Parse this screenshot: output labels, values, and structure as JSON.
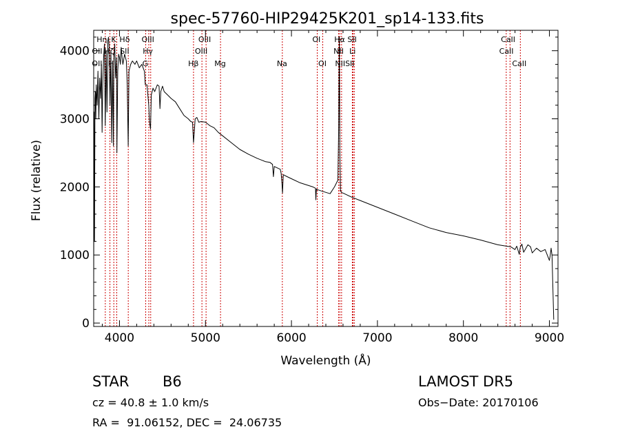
{
  "chart_data": {
    "type": "line",
    "title": "spec-57760-HIP29425K201_sp14-133.fits",
    "xlabel": "Wavelength (Å)",
    "ylabel": "Flux (relative)",
    "xlim": [
      3700,
      9100
    ],
    "ylim": [
      -50,
      4300
    ],
    "xticks": [
      4000,
      5000,
      6000,
      7000,
      8000,
      9000
    ],
    "yticks": [
      0,
      1000,
      2000,
      3000,
      4000
    ],
    "line_color": "#000000",
    "marker_color": "#cc0000",
    "series": [
      {
        "x": [
          3700,
          3705,
          3710,
          3715,
          3720,
          3725,
          3730,
          3740,
          3750,
          3760,
          3770,
          3780,
          3790,
          3798,
          3805,
          3815,
          3825,
          3835,
          3845,
          3855,
          3865,
          3872,
          3880,
          3890,
          3900,
          3910,
          3920,
          3930,
          3935,
          3945,
          3955,
          3965,
          3970,
          3980,
          3990,
          4000,
          4010,
          4020,
          4030,
          4040,
          4060,
          4080,
          4090,
          4101,
          4110,
          4130,
          4150,
          4180,
          4200,
          4230,
          4260,
          4290,
          4300,
          4320,
          4340,
          4350,
          4361,
          4370,
          4390,
          4410,
          4440,
          4460,
          4471,
          4480,
          4500,
          4520,
          4560,
          4600,
          4650,
          4700,
          4750,
          4800,
          4830,
          4850,
          4861,
          4870,
          4880,
          4900,
          4922,
          4950,
          5000,
          5050,
          5100,
          5150,
          5200,
          5300,
          5400,
          5500,
          5600,
          5700,
          5750,
          5780,
          5790,
          5800,
          5850,
          5870,
          5880,
          5890,
          5896,
          5905,
          5950,
          6000,
          6100,
          6200,
          6250,
          6280,
          6284,
          6290,
          6300,
          6400,
          6450,
          6500,
          6540,
          6550,
          6557,
          6563,
          6570,
          6580,
          6600,
          6700,
          6800,
          7000,
          7200,
          7400,
          7600,
          7800,
          8000,
          8200,
          8400,
          8500,
          8550,
          8600,
          8620,
          8650,
          8660,
          8680,
          8700,
          8750,
          8780,
          8800,
          8850,
          8900,
          8950,
          9000,
          9010,
          9020,
          9030,
          9050
        ],
        "y": [
          500,
          3100,
          1200,
          3300,
          3400,
          3000,
          3500,
          3200,
          3700,
          3000,
          3600,
          3300,
          3800,
          2800,
          3500,
          3900,
          4100,
          2900,
          4000,
          3100,
          4150,
          4200,
          4050,
          3200,
          4000,
          2650,
          3800,
          2600,
          3900,
          4100,
          3600,
          3900,
          2500,
          3700,
          3950,
          3900,
          3800,
          4050,
          3900,
          3800,
          3950,
          3850,
          3500,
          2600,
          3700,
          3800,
          3850,
          3800,
          3850,
          3750,
          3800,
          3700,
          3500,
          3500,
          3200,
          2950,
          2850,
          3350,
          3450,
          3400,
          3500,
          3480,
          3150,
          3400,
          3480,
          3400,
          3350,
          3300,
          3250,
          3150,
          3050,
          3000,
          2960,
          2950,
          2650,
          2800,
          3000,
          3020,
          2950,
          2960,
          2950,
          2900,
          2870,
          2800,
          2750,
          2650,
          2550,
          2480,
          2420,
          2370,
          2360,
          2330,
          2150,
          2300,
          2270,
          2260,
          2200,
          2050,
          1910,
          2180,
          2150,
          2120,
          2060,
          2020,
          2000,
          1980,
          1810,
          1970,
          1960,
          1920,
          1900,
          2000,
          2100,
          2900,
          4200,
          2500,
          1950,
          1920,
          1910,
          1850,
          1800,
          1700,
          1600,
          1500,
          1400,
          1330,
          1280,
          1220,
          1150,
          1130,
          1120,
          1080,
          1130,
          1010,
          1110,
          1160,
          1040,
          1150,
          1120,
          1030,
          1100,
          1050,
          1080,
          920,
          1000,
          1100,
          1000,
          50
        ]
      }
    ],
    "lines": [
      {
        "name": "Hη",
        "wavelength": 3835
      },
      {
        "name": "Hζ",
        "wavelength": 3889
      },
      {
        "name": "K",
        "wavelength": 3934
      },
      {
        "name": "H",
        "wavelength": 3968
      },
      {
        "name": "Hδ",
        "wavelength": 4102
      },
      {
        "name": "G",
        "wavelength": 4305
      },
      {
        "name": "Hγ",
        "wavelength": 4341
      },
      {
        "name": "OIII",
        "wavelength": 4363
      },
      {
        "name": "Hβ",
        "wavelength": 4861
      },
      {
        "name": "OIII",
        "wavelength": 4959
      },
      {
        "name": "OIII",
        "wavelength": 5007
      },
      {
        "name": "Mg",
        "wavelength": 5175
      },
      {
        "name": "Na",
        "wavelength": 5894
      },
      {
        "name": "OI",
        "wavelength": 6300
      },
      {
        "name": "OI",
        "wavelength": 6364
      },
      {
        "name": "NII",
        "wavelength": 6548
      },
      {
        "name": "Hα",
        "wavelength": 6563
      },
      {
        "name": "NII",
        "wavelength": 6583
      },
      {
        "name": "Li",
        "wavelength": 6708
      },
      {
        "name": "SII",
        "wavelength": 6716
      },
      {
        "name": "SII",
        "wavelength": 6731
      },
      {
        "name": "CaII",
        "wavelength": 8498
      },
      {
        "name": "CaII",
        "wavelength": 8542
      },
      {
        "name": "CaII",
        "wavelength": 8662
      }
    ],
    "line_labels": [
      {
        "text": "Hη",
        "wavelength": 3795,
        "row": 1
      },
      {
        "text": "K",
        "wavelength": 3932,
        "row": 1
      },
      {
        "text": "Hδ",
        "wavelength": 4060,
        "row": 1
      },
      {
        "text": "OIII",
        "wavelength": 4330,
        "row": 1
      },
      {
        "text": "OIII",
        "wavelength": 4990,
        "row": 1
      },
      {
        "text": "OI",
        "wavelength": 6290,
        "row": 1
      },
      {
        "text": "Hα",
        "wavelength": 6560,
        "row": 1
      },
      {
        "text": "SII",
        "wavelength": 6705,
        "row": 1
      },
      {
        "text": "CaII",
        "wavelength": 8520,
        "row": 1
      },
      {
        "text": "OII",
        "wavelength": 3740,
        "row": 2
      },
      {
        "text": "Hζ",
        "wavelength": 3880,
        "row": 2
      },
      {
        "text": "SII",
        "wavelength": 4060,
        "row": 2
      },
      {
        "text": "Hγ",
        "wavelength": 4330,
        "row": 2
      },
      {
        "text": "OIII",
        "wavelength": 4950,
        "row": 2
      },
      {
        "text": "NII",
        "wavelength": 6548,
        "row": 2
      },
      {
        "text": "Li",
        "wavelength": 6710,
        "row": 2
      },
      {
        "text": "CaII",
        "wavelength": 8500,
        "row": 2
      },
      {
        "text": "OII",
        "wavelength": 3740,
        "row": 3
      },
      {
        "text": "H",
        "wavelength": 3900,
        "row": 3
      },
      {
        "text": "G",
        "wavelength": 4300,
        "row": 3
      },
      {
        "text": "Hβ",
        "wavelength": 4860,
        "row": 3
      },
      {
        "text": "Mg",
        "wavelength": 5170,
        "row": 3
      },
      {
        "text": "Na",
        "wavelength": 5890,
        "row": 3
      },
      {
        "text": "OI",
        "wavelength": 6360,
        "row": 3
      },
      {
        "text": "NIISII",
        "wavelength": 6620,
        "row": 3
      },
      {
        "text": "CaII",
        "wavelength": 8650,
        "row": 3
      }
    ]
  },
  "info": {
    "object_class": "STAR",
    "subclass": "B6",
    "survey": "LAMOST DR5",
    "cz": "cz = 40.8 ± 1.0 km/s",
    "obs_date": "Obs−Date: 20170106",
    "coords": "RA =  91.06152, DEC =  24.06735"
  }
}
